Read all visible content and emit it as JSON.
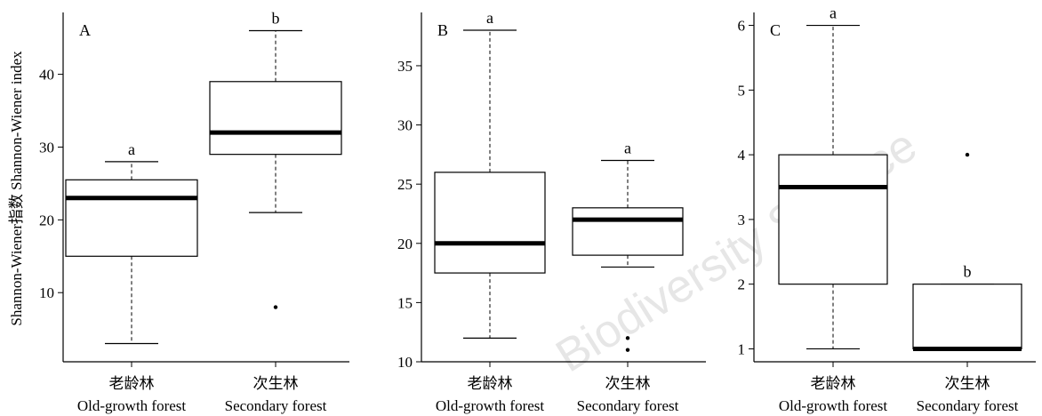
{
  "y_axis_label": "Shannon-Wiener指数 Shannon-Wiener index",
  "watermark": "Biodiversity Science",
  "chart_data": [
    {
      "type": "box",
      "panel": "A",
      "categories": [
        {
          "cn": "老龄林",
          "en": "Old-growth forest"
        },
        {
          "cn": "次生林",
          "en": "Secondary forest"
        }
      ],
      "boxes": [
        {
          "whisker_low": 3,
          "q1": 15,
          "median": 23,
          "q3": 25.5,
          "whisker_high": 28,
          "outliers": [],
          "letter": "a"
        },
        {
          "whisker_low": 21,
          "q1": 29,
          "median": 32,
          "q3": 39,
          "whisker_high": 46,
          "outliers": [
            8
          ],
          "letter": "b"
        }
      ],
      "ylim": [
        0.5,
        48.5
      ],
      "yticks": [
        10,
        20,
        30,
        40
      ],
      "ylabel": "Shannon-Wiener指数 Shannon-Wiener index"
    },
    {
      "type": "box",
      "panel": "B",
      "categories": [
        {
          "cn": "老龄林",
          "en": "Old-growth forest"
        },
        {
          "cn": "次生林",
          "en": "Secondary forest"
        }
      ],
      "boxes": [
        {
          "whisker_low": 12,
          "q1": 17.5,
          "median": 20,
          "q3": 26,
          "whisker_high": 38,
          "outliers": [],
          "letter": "a"
        },
        {
          "whisker_low": 18,
          "q1": 19,
          "median": 22,
          "q3": 23,
          "whisker_high": 27,
          "outliers": [
            11,
            12
          ],
          "letter": "a"
        }
      ],
      "ylim": [
        10,
        39.5
      ],
      "yticks": [
        10,
        15,
        20,
        25,
        30,
        35
      ]
    },
    {
      "type": "box",
      "panel": "C",
      "categories": [
        {
          "cn": "老龄林",
          "en": "Old-growth forest"
        },
        {
          "cn": "次生林",
          "en": "Secondary forest"
        }
      ],
      "boxes": [
        {
          "whisker_low": 1,
          "q1": 2,
          "median": 3.5,
          "q3": 4,
          "whisker_high": 6,
          "outliers": [],
          "letter": "a"
        },
        {
          "whisker_low": 1,
          "q1": 1,
          "median": 1,
          "q3": 2,
          "whisker_high": 2,
          "outliers": [
            4
          ],
          "letter": "b"
        }
      ],
      "ylim": [
        0.8,
        6.2
      ],
      "yticks": [
        1,
        2,
        3,
        4,
        5,
        6
      ]
    }
  ]
}
